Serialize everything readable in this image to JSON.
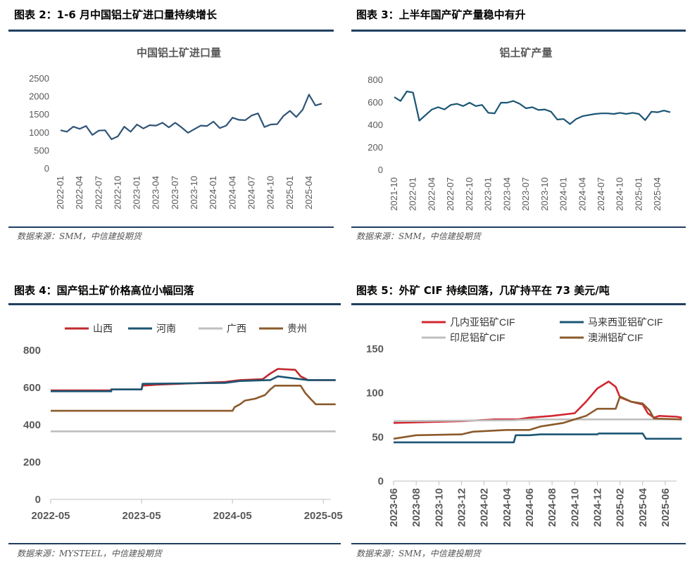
{
  "panels": [
    {
      "id": "fig2",
      "title": "图表 2：1-6 月中国铝土矿进口量持续增长",
      "source": "数据来源：SMM，中信建投期货"
    },
    {
      "id": "fig3",
      "title": "图表 3：上半年国产矿产量稳中有升",
      "source": "数据来源：SMM，中信建投期货"
    },
    {
      "id": "fig4",
      "title": "图表 4：国产铝土矿价格高位小幅回落",
      "source": "数据来源：MYSTEEL，中信建投期货"
    },
    {
      "id": "fig5",
      "title": "图表 5：外矿 CIF 持续回落，几矿持平在 73 美元/吨",
      "source": "数据来源：SMM，中信建投期货"
    }
  ],
  "chart_data": [
    {
      "type": "line",
      "title": "中国铝土矿进口量",
      "xlabel": "",
      "ylabel": "",
      "ylim": [
        0,
        2500
      ],
      "yticks": [
        "0",
        "500",
        "1000",
        "1500",
        "2000",
        "2500"
      ],
      "xticks": [
        "2022-01",
        "2022-04",
        "2022-07",
        "2022-10",
        "2023-01",
        "2023-04",
        "2023-07",
        "2023-10",
        "2024-01",
        "2024-04",
        "2024-07",
        "2024-10",
        "2025-01",
        "2025-04"
      ],
      "grid": false,
      "color": "#2f5478",
      "x_start": "2022-01",
      "values": [
        1070,
        1030,
        1170,
        1110,
        1190,
        940,
        1060,
        1070,
        820,
        900,
        1170,
        1030,
        1230,
        1120,
        1210,
        1200,
        1280,
        1150,
        1280,
        1150,
        1000,
        1100,
        1200,
        1190,
        1310,
        1130,
        1200,
        1420,
        1360,
        1350,
        1480,
        1540,
        1160,
        1230,
        1240,
        1470,
        1610,
        1440,
        1640,
        2060,
        1760,
        1810
      ]
    },
    {
      "type": "line",
      "title": "铝土矿产量",
      "xlabel": "",
      "ylabel": "",
      "ylim": [
        0,
        800
      ],
      "yticks": [
        "0",
        "200",
        "400",
        "600",
        "800"
      ],
      "xticks": [
        "2021-10",
        "2022-01",
        "2022-04",
        "2022-07",
        "2022-10",
        "2023-01",
        "2023-04",
        "2023-07",
        "2023-10",
        "2024-01",
        "2024-04",
        "2024-07",
        "2024-10",
        "2025-01",
        "2025-04"
      ],
      "grid": false,
      "color": "#1b5574",
      "x_start": "2021-10",
      "values": [
        650,
        615,
        700,
        690,
        440,
        490,
        540,
        560,
        540,
        580,
        590,
        570,
        600,
        570,
        580,
        510,
        505,
        600,
        600,
        615,
        590,
        550,
        560,
        535,
        540,
        520,
        450,
        455,
        410,
        455,
        480,
        490,
        500,
        505,
        505,
        500,
        510,
        500,
        510,
        500,
        445,
        520,
        515,
        530,
        515
      ]
    },
    {
      "type": "line",
      "title": "",
      "xlabel": "",
      "ylabel": "",
      "ylim": [
        0,
        800
      ],
      "yticks": [
        "0",
        "200",
        "400",
        "600",
        "800"
      ],
      "xticks": [
        "2022-05",
        "2023-05",
        "2024-05",
        "2025-05"
      ],
      "x_range": [
        "2022-05",
        "2025-06"
      ],
      "grid": false,
      "legend_position": "top",
      "series": [
        {
          "name": "山西",
          "color": "#c0282d",
          "points": [
            [
              "2022-05-01",
              585
            ],
            [
              "2023-01-01",
              585
            ],
            [
              "2023-01-01",
              590
            ],
            [
              "2023-05-01",
              590
            ],
            [
              "2023-05-05",
              610
            ],
            [
              "2023-07-01",
              615
            ],
            [
              "2023-10-01",
              620
            ],
            [
              "2024-04-01",
              630
            ],
            [
              "2024-06-01",
              640
            ],
            [
              "2024-09-01",
              645
            ],
            [
              "2024-10-01",
              675
            ],
            [
              "2024-11-01",
              700
            ],
            [
              "2025-01-10",
              695
            ],
            [
              "2025-02-01",
              660
            ],
            [
              "2025-03-01",
              640
            ],
            [
              "2025-06-20",
              640
            ]
          ]
        },
        {
          "name": "河南",
          "color": "#1b5574",
          "points": [
            [
              "2022-05-01",
              580
            ],
            [
              "2023-01-01",
              580
            ],
            [
              "2023-01-01",
              590
            ],
            [
              "2023-05-01",
              590
            ],
            [
              "2023-05-05",
              620
            ],
            [
              "2024-04-01",
              625
            ],
            [
              "2024-06-01",
              635
            ],
            [
              "2024-10-01",
              640
            ],
            [
              "2024-11-01",
              660
            ],
            [
              "2025-01-01",
              650
            ],
            [
              "2025-03-01",
              640
            ],
            [
              "2025-06-20",
              640
            ]
          ]
        },
        {
          "name": "广西",
          "color": "#bfbfbf",
          "points": [
            [
              "2022-05-01",
              365
            ],
            [
              "2025-06-20",
              365
            ]
          ]
        },
        {
          "name": "贵州",
          "color": "#8b5a2b",
          "points": [
            [
              "2022-05-01",
              475
            ],
            [
              "2024-05-01",
              475
            ],
            [
              "2024-05-10",
              495
            ],
            [
              "2024-06-01",
              510
            ],
            [
              "2024-06-20",
              530
            ],
            [
              "2024-08-01",
              540
            ],
            [
              "2024-09-10",
              560
            ],
            [
              "2024-10-01",
              590
            ],
            [
              "2024-10-20",
              610
            ],
            [
              "2025-02-01",
              610
            ],
            [
              "2025-02-20",
              570
            ],
            [
              "2025-03-10",
              540
            ],
            [
              "2025-04-01",
              510
            ],
            [
              "2025-06-20",
              510
            ]
          ]
        }
      ]
    },
    {
      "type": "line",
      "title": "",
      "xlabel": "",
      "ylabel": "",
      "ylim": [
        0,
        150
      ],
      "yticks": [
        "0",
        "50",
        "100",
        "150"
      ],
      "xticks": [
        "2023-06",
        "2023-08",
        "2023-10",
        "2023-12",
        "2024-02",
        "2024-04",
        "2024-06",
        "2024-08",
        "2024-10",
        "2024-12",
        "2025-02",
        "2025-04",
        "2025-06"
      ],
      "x_range": [
        "2023-06",
        "2025-07"
      ],
      "grid": false,
      "legend_position": "top",
      "series": [
        {
          "name": "几内亚铝矿CIF",
          "color": "#d22630",
          "points": [
            [
              "2023-06-01",
              66
            ],
            [
              "2023-12-01",
              68
            ],
            [
              "2024-03-01",
              70
            ],
            [
              "2024-05-01",
              70
            ],
            [
              "2024-06-01",
              72
            ],
            [
              "2024-08-01",
              74
            ],
            [
              "2024-10-01",
              77
            ],
            [
              "2024-11-01",
              90
            ],
            [
              "2024-12-01",
              105
            ],
            [
              "2025-01-01",
              113
            ],
            [
              "2025-01-20",
              107
            ],
            [
              "2025-02-01",
              95
            ],
            [
              "2025-03-01",
              90
            ],
            [
              "2025-04-01",
              87
            ],
            [
              "2025-04-15",
              77
            ],
            [
              "2025-05-01",
              72
            ],
            [
              "2025-05-15",
              74
            ],
            [
              "2025-07-01",
              73
            ],
            [
              "2025-07-15",
              72
            ]
          ]
        },
        {
          "name": "马来西亚铝矿CIF",
          "color": "#1b5574",
          "points": [
            [
              "2023-06-01",
              44
            ],
            [
              "2024-04-20",
              44
            ],
            [
              "2024-04-25",
              52
            ],
            [
              "2024-06-01",
              52
            ],
            [
              "2024-07-01",
              53
            ],
            [
              "2024-12-01",
              53
            ],
            [
              "2024-12-05",
              54
            ],
            [
              "2025-04-01",
              54
            ],
            [
              "2025-04-10",
              48
            ],
            [
              "2025-07-15",
              48
            ]
          ]
        },
        {
          "name": "印尼铝矿CIF",
          "color": "#bfbfbf",
          "points": [
            [
              "2023-06-01",
              68
            ],
            [
              "2024-04-20",
              69
            ],
            [
              "2024-06-01",
              70
            ],
            [
              "2025-07-15",
              70
            ]
          ]
        },
        {
          "name": "澳洲铝矿CIF",
          "color": "#8b5a2b",
          "points": [
            [
              "2023-06-01",
              48
            ],
            [
              "2023-08-01",
              52
            ],
            [
              "2023-12-01",
              53
            ],
            [
              "2024-01-01",
              56
            ],
            [
              "2024-04-01",
              58
            ],
            [
              "2024-06-01",
              58
            ],
            [
              "2024-07-01",
              62
            ],
            [
              "2024-08-01",
              64
            ],
            [
              "2024-09-01",
              66
            ],
            [
              "2024-10-01",
              70
            ],
            [
              "2024-11-01",
              74
            ],
            [
              "2024-12-01",
              82
            ],
            [
              "2025-01-20",
              82
            ],
            [
              "2025-02-01",
              96
            ],
            [
              "2025-03-01",
              90
            ],
            [
              "2025-04-01",
              88
            ],
            [
              "2025-04-20",
              80
            ],
            [
              "2025-05-01",
              71
            ],
            [
              "2025-07-15",
              70
            ]
          ]
        }
      ]
    }
  ]
}
